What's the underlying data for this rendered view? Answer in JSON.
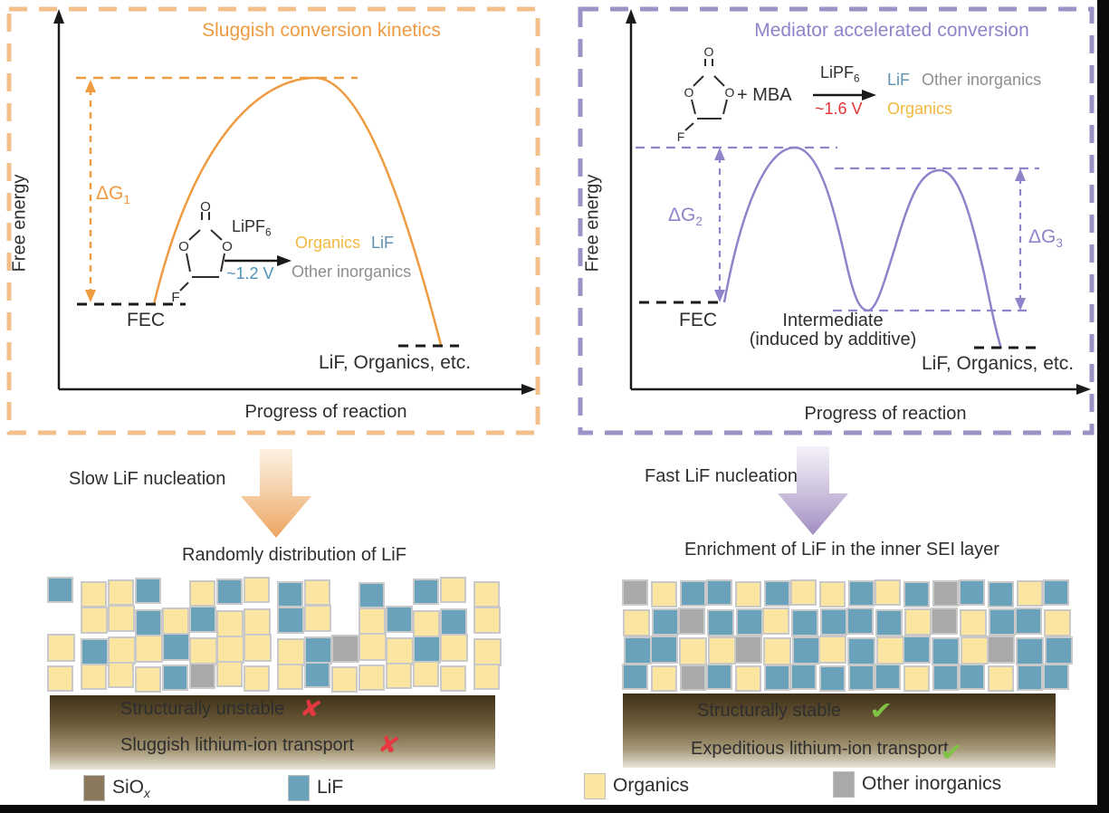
{
  "colors": {
    "orange": "#EF9B41",
    "orange_border": "#F3BF8B",
    "purple": "#8D84CA",
    "purple_border": "#9C92C6",
    "teal_text": "#4E93B8",
    "lif_text": "#5E93B2",
    "organics_text": "#F2B83E",
    "gray_text": "#8E8E8E",
    "red_text": "#E63434",
    "mosaic_yellow": "#FAE6A1",
    "mosaic_blue": "#6BA2BB",
    "mosaic_gray": "#A9A9A9",
    "mosaic_border": "#C9C9C9",
    "siox_brown": "#8A795A",
    "substrate_top": "#3F3118",
    "substrate_bottom": "#E9E4D8",
    "check_green": "#7FC244",
    "cross_red": "#E6393F"
  },
  "left_panel": {
    "title": "Sluggish conversion kinetics",
    "y_axis": "Free energy",
    "x_axis": "Progress of reaction",
    "dg_base": "ΔG",
    "dg_sub": "1",
    "start_label": "FEC",
    "end_label": "LiF, Organics, etc.",
    "reaction": {
      "catalyst_base": "LiPF",
      "catalyst_sub": "6",
      "voltage": "~1.2 V",
      "product_organics": "Organics",
      "product_lif": "LiF",
      "product_other": "Other inorganics"
    },
    "molecule": {
      "o_top": "O",
      "o_left": "O",
      "o_right": "O",
      "f": "F"
    }
  },
  "right_panel": {
    "title": "Mediator accelerated conversion",
    "y_axis": "Free energy",
    "x_axis": "Progress of reaction",
    "dg2_base": "ΔG",
    "dg2_sub": "2",
    "dg3_base": "ΔG",
    "dg3_sub": "3",
    "start_label": "FEC",
    "intermediate_line1": "Intermediate",
    "intermediate_line2": "(induced by additive)",
    "end_label": "LiF, Organics, etc.",
    "reaction": {
      "mediator": "+ MBA",
      "catalyst_base": "LiPF",
      "catalyst_sub": "6",
      "voltage": "~1.6 V",
      "product_lif": "LiF",
      "product_other": "Other inorganics",
      "product_organics": "Organics"
    },
    "molecule": {
      "o_top": "O",
      "o_left": "O",
      "o_right": "O",
      "f": "F"
    }
  },
  "middle": {
    "left_arrow_label": "Slow LiF nucleation",
    "right_arrow_label": "Fast LiF nucleation"
  },
  "bottom_left": {
    "title": "Randomly distribution of LiF",
    "mosaic_rows": [
      "BYYB.YBYBY.B.BYY",
      ".YYBYBYYBY.YBYBY",
      "YBYYBYYYYBGYYBYY",
      "YYYYBGYYYBYYYYYY"
    ],
    "note1": "Structurally unstable",
    "note2": "Sluggish lithium-ion transport",
    "mark": "✘"
  },
  "bottom_right": {
    "title": "Enrichment of LiF in the inner SEI layer",
    "mosaic_rows": [
      "GYBBYBYYBYBGBBYB",
      "YBGBBYBBBBYGYBBY",
      "BBYYGYBYBYBBYGBB",
      "BYGBYBBBBBYBBYBB"
    ],
    "note1": "Structurally stable",
    "note2": "Expeditious lithium-ion transport",
    "mark": "✔"
  },
  "legend": {
    "items": [
      {
        "key": "siox",
        "label_base": "SiO",
        "label_sub": "x",
        "color": "#8A795A"
      },
      {
        "key": "lif",
        "label": "LiF",
        "color": "#6BA2BB"
      },
      {
        "key": "organics",
        "label": "Organics",
        "color": "#FAE6A1"
      },
      {
        "key": "other-inorganics",
        "label": "Other inorganics",
        "color": "#A9A9A9"
      }
    ]
  }
}
